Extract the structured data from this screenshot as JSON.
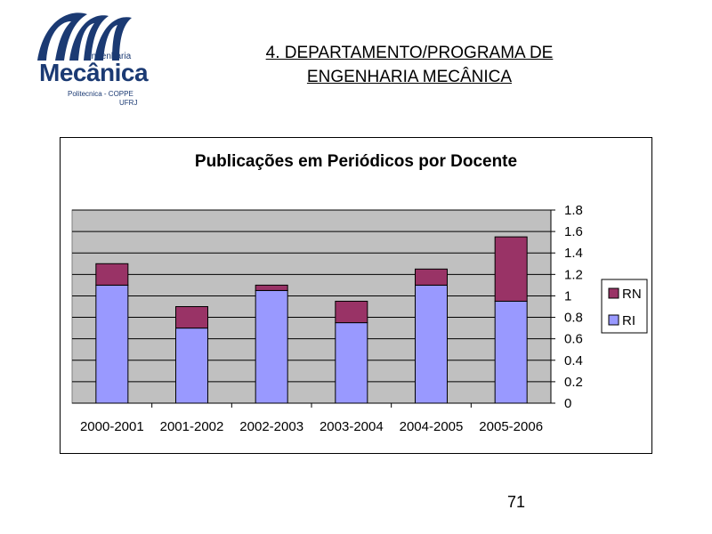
{
  "logo": {
    "eng": "Engenharia",
    "main": "Mecânica",
    "poli": "Politecnica - COPPE",
    "ufrj": "UFRJ"
  },
  "header": {
    "title_line1": "4. DEPARTAMENTO/PROGRAMA DE",
    "title_line2": "ENGENHARIA MECÂNICA"
  },
  "page_number": "71",
  "chart_data": {
    "type": "bar",
    "stacked": true,
    "title": "Publicações em Periódicos por Docente",
    "categories": [
      "2000-2001",
      "2001-2002",
      "2002-2003",
      "2003-2004",
      "2004-2005",
      "2005-2006"
    ],
    "series": [
      {
        "name": "RI",
        "values": [
          1.1,
          0.7,
          1.05,
          0.75,
          1.1,
          0.95
        ],
        "color": "#9999ff"
      },
      {
        "name": "RN",
        "values": [
          0.2,
          0.2,
          0.05,
          0.2,
          0.15,
          0.6
        ],
        "color": "#993366"
      }
    ],
    "ylim": [
      0,
      1.8
    ],
    "yticks": [
      "0",
      "0.2",
      "0.4",
      "0.6",
      "0.8",
      "1",
      "1.2",
      "1.4",
      "1.6",
      "1.8"
    ],
    "y_axis_side": "right",
    "grid": true,
    "plot_background": "#c0c0c0",
    "legend_position": "right"
  }
}
